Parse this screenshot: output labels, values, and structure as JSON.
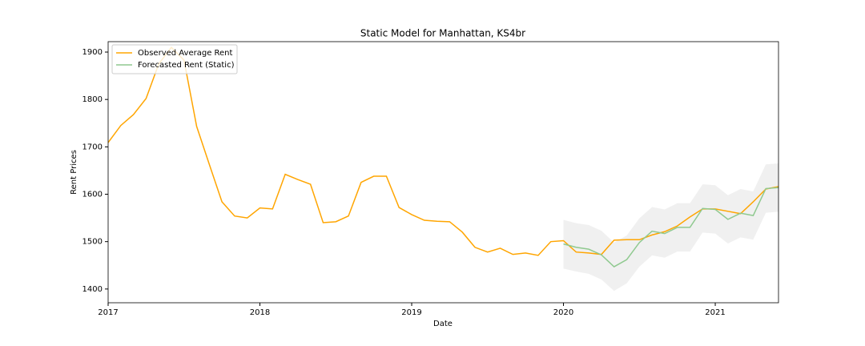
{
  "chart_data": {
    "type": "line",
    "title": "Static Model for Manhattan, KS4br",
    "xlabel": "Date",
    "ylabel": "Rent Prices",
    "x": [
      "2017-01",
      "2017-02",
      "2017-03",
      "2017-04",
      "2017-05",
      "2017-06",
      "2017-07",
      "2017-08",
      "2017-09",
      "2017-10",
      "2017-11",
      "2017-12",
      "2018-01",
      "2018-02",
      "2018-03",
      "2018-04",
      "2018-05",
      "2018-06",
      "2018-07",
      "2018-08",
      "2018-09",
      "2018-10",
      "2018-11",
      "2018-12",
      "2019-01",
      "2019-02",
      "2019-03",
      "2019-04",
      "2019-05",
      "2019-06",
      "2019-07",
      "2019-08",
      "2019-09",
      "2019-10",
      "2019-11",
      "2019-12",
      "2020-01",
      "2020-02",
      "2020-03",
      "2020-04",
      "2020-05",
      "2020-06",
      "2020-07",
      "2020-08",
      "2020-09",
      "2020-10",
      "2020-11",
      "2020-12",
      "2021-01",
      "2021-02",
      "2021-03",
      "2021-04",
      "2021-05",
      "2021-06"
    ],
    "series": [
      {
        "name": "Observed Average Rent",
        "color": "#ffa500",
        "values": [
          1709,
          1745,
          1768,
          1802,
          1875,
          1910,
          1883,
          1743,
          1663,
          1584,
          1554,
          1550,
          1571,
          1569,
          1642,
          1631,
          1621,
          1540,
          1542,
          1554,
          1625,
          1638,
          1638,
          1572,
          1557,
          1545,
          1543,
          1542,
          1520,
          1488,
          1478,
          1486,
          1473,
          1476,
          1471,
          1500,
          1502,
          1478,
          1476,
          1473,
          1503,
          1504,
          1504,
          1514,
          1521,
          1533,
          1552,
          1569,
          1569,
          1564,
          1559,
          1584,
          1611,
          1616
        ]
      },
      {
        "name": "Forecasted Rent (Static)",
        "color": "#8fc98f",
        "values": [
          null,
          null,
          null,
          null,
          null,
          null,
          null,
          null,
          null,
          null,
          null,
          null,
          null,
          null,
          null,
          null,
          null,
          null,
          null,
          null,
          null,
          null,
          null,
          null,
          null,
          null,
          null,
          null,
          null,
          null,
          null,
          null,
          null,
          null,
          null,
          null,
          1495,
          1488,
          1484,
          1472,
          1447,
          1462,
          1498,
          1522,
          1517,
          1530,
          1530,
          1570,
          1568,
          1547,
          1560,
          1555,
          1612,
          1614
        ]
      }
    ],
    "confidence_band": {
      "color": "#d9d9d9",
      "lower": [
        null,
        null,
        null,
        null,
        null,
        null,
        null,
        null,
        null,
        null,
        null,
        null,
        null,
        null,
        null,
        null,
        null,
        null,
        null,
        null,
        null,
        null,
        null,
        null,
        null,
        null,
        null,
        null,
        null,
        null,
        null,
        null,
        null,
        null,
        null,
        null,
        1443,
        1437,
        1432,
        1420,
        1396,
        1412,
        1447,
        1471,
        1466,
        1479,
        1479,
        1519,
        1517,
        1496,
        1509,
        1504,
        1561,
        1563
      ],
      "upper": [
        null,
        null,
        null,
        null,
        null,
        null,
        null,
        null,
        null,
        null,
        null,
        null,
        null,
        null,
        null,
        null,
        null,
        null,
        null,
        null,
        null,
        null,
        null,
        null,
        null,
        null,
        null,
        null,
        null,
        null,
        null,
        null,
        null,
        null,
        null,
        null,
        1546,
        1539,
        1535,
        1523,
        1498,
        1513,
        1549,
        1573,
        1568,
        1581,
        1581,
        1621,
        1619,
        1598,
        1611,
        1606,
        1663,
        1665
      ]
    },
    "xlim": [
      "2017-01",
      "2021-06"
    ],
    "xticks": [
      {
        "value": "2017-01",
        "label": "2017"
      },
      {
        "value": "2018-01",
        "label": "2018"
      },
      {
        "value": "2019-01",
        "label": "2019"
      },
      {
        "value": "2020-01",
        "label": "2020"
      },
      {
        "value": "2021-01",
        "label": "2021"
      }
    ],
    "ylim": [
      1371,
      1922
    ],
    "yticks": [
      1400,
      1500,
      1600,
      1700,
      1800,
      1900
    ],
    "legend": "upper left"
  }
}
